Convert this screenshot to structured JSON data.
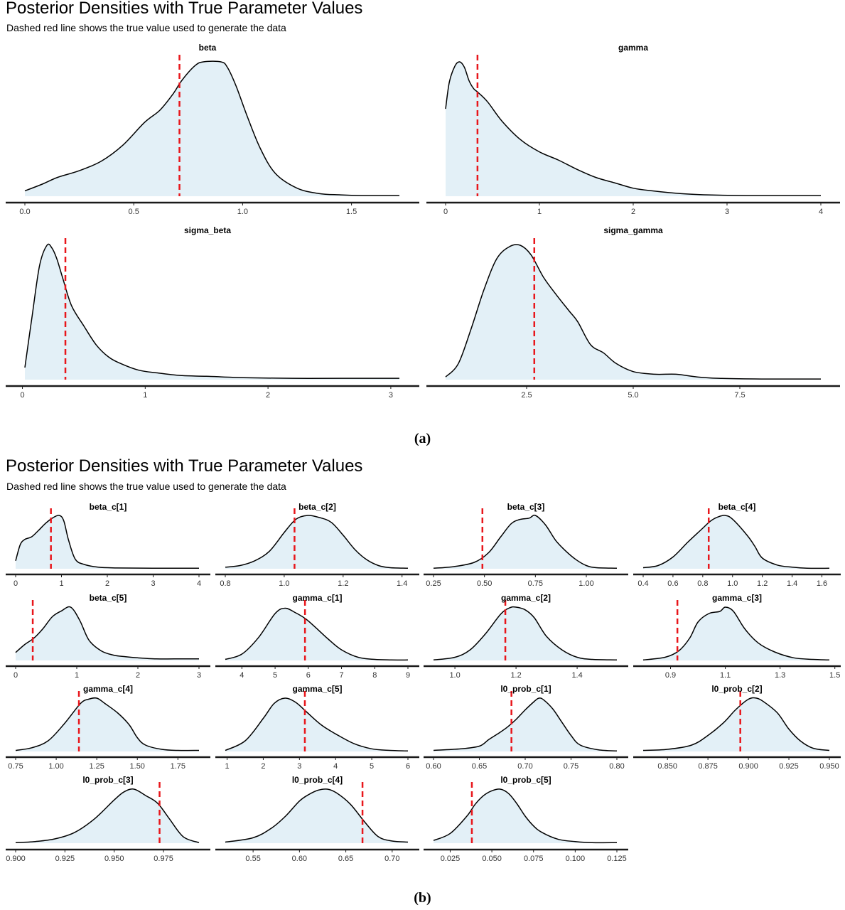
{
  "figures": [
    {
      "title": "Posterior Densities with True Parameter Values",
      "subtitle": "Dashed red line shows the true value used to generate the data",
      "caption": "(a)"
    },
    {
      "title": "Posterior Densities with True Parameter Values",
      "subtitle": "Dashed red line shows the true value used to generate the data",
      "caption": "(b)"
    }
  ],
  "colors": {
    "fill": "#e3f0f7",
    "line": "#000000",
    "true_value": "#e8161b",
    "axis": "#1a1a1a",
    "tick_text": "#333333"
  },
  "chart_data": [
    {
      "type": "area",
      "panel": "a",
      "title": "beta",
      "xlim": [
        0.0,
        1.72
      ],
      "xticks": [
        0.0,
        0.5,
        1.0,
        1.5
      ],
      "tick_labels": [
        "0.0",
        "0.5",
        "1.0",
        "1.5"
      ],
      "true_value": 0.71,
      "density": {
        "x": [
          0.0,
          0.08,
          0.15,
          0.25,
          0.35,
          0.45,
          0.55,
          0.62,
          0.68,
          0.72,
          0.78,
          0.82,
          0.9,
          0.93,
          0.97,
          1.02,
          1.08,
          1.15,
          1.25,
          1.35,
          1.45,
          1.55,
          1.72
        ],
        "y": [
          0.04,
          0.09,
          0.14,
          0.19,
          0.26,
          0.38,
          0.55,
          0.64,
          0.76,
          0.86,
          0.97,
          1.0,
          1.0,
          0.96,
          0.82,
          0.6,
          0.36,
          0.17,
          0.06,
          0.02,
          0.01,
          0.005,
          0.005
        ]
      }
    },
    {
      "type": "area",
      "panel": "a",
      "title": "gamma",
      "xlim": [
        0.0,
        4.0
      ],
      "xticks": [
        0,
        1,
        2,
        3,
        4
      ],
      "tick_labels": [
        "0",
        "1",
        "2",
        "3",
        "4"
      ],
      "true_value": 0.34,
      "density": {
        "x": [
          0.0,
          0.04,
          0.1,
          0.15,
          0.2,
          0.25,
          0.3,
          0.35,
          0.45,
          0.6,
          0.8,
          1.0,
          1.2,
          1.4,
          1.6,
          1.8,
          2.0,
          2.2,
          2.5,
          2.8,
          3.2,
          4.0
        ],
        "y": [
          0.65,
          0.85,
          0.97,
          1.0,
          0.96,
          0.86,
          0.8,
          0.77,
          0.7,
          0.56,
          0.42,
          0.33,
          0.27,
          0.2,
          0.14,
          0.1,
          0.06,
          0.04,
          0.02,
          0.01,
          0.005,
          0.005
        ]
      }
    },
    {
      "type": "area",
      "panel": "a",
      "title": "sigma_beta",
      "xlim": [
        0.02,
        3.07
      ],
      "xticks": [
        0,
        1,
        2,
        3
      ],
      "tick_labels": [
        "0",
        "1",
        "2",
        "3"
      ],
      "true_value": 0.35,
      "density": {
        "x": [
          0.02,
          0.08,
          0.14,
          0.2,
          0.24,
          0.28,
          0.33,
          0.4,
          0.5,
          0.6,
          0.7,
          0.8,
          0.95,
          1.1,
          1.3,
          1.5,
          1.8,
          2.2,
          2.6,
          3.07
        ],
        "y": [
          0.09,
          0.48,
          0.85,
          1.0,
          0.98,
          0.9,
          0.75,
          0.55,
          0.4,
          0.26,
          0.17,
          0.12,
          0.07,
          0.05,
          0.03,
          0.025,
          0.015,
          0.01,
          0.01,
          0.01
        ]
      }
    },
    {
      "type": "area",
      "panel": "a",
      "title": "sigma_gamma",
      "xlim": [
        0.6,
        9.4
      ],
      "xticks": [
        2.5,
        5.0,
        7.5
      ],
      "tick_labels": [
        "2.5",
        "5.0",
        "7.5"
      ],
      "true_value": 2.68,
      "density": {
        "x": [
          0.6,
          0.9,
          1.2,
          1.5,
          1.8,
          2.1,
          2.35,
          2.6,
          2.9,
          3.2,
          3.5,
          3.7,
          4.0,
          4.3,
          4.6,
          5.0,
          5.5,
          6.0,
          6.5,
          7.0,
          8.0,
          9.4
        ],
        "y": [
          0.02,
          0.12,
          0.38,
          0.67,
          0.9,
          0.99,
          1.0,
          0.93,
          0.76,
          0.63,
          0.51,
          0.43,
          0.26,
          0.2,
          0.12,
          0.06,
          0.04,
          0.04,
          0.02,
          0.01,
          0.005,
          0.005
        ]
      }
    },
    {
      "type": "area",
      "panel": "b",
      "title": "beta_c[1]",
      "xlim": [
        0.0,
        4.0
      ],
      "xticks": [
        0,
        1,
        2,
        3,
        4
      ],
      "tick_labels": [
        "0",
        "1",
        "2",
        "3",
        "4"
      ],
      "true_value": 0.77,
      "density": {
        "x": [
          0.0,
          0.1,
          0.2,
          0.35,
          0.5,
          0.65,
          0.8,
          0.95,
          1.05,
          1.15,
          1.3,
          1.5,
          1.8,
          2.2,
          3.0,
          4.0
        ],
        "y": [
          0.15,
          0.45,
          0.55,
          0.6,
          0.72,
          0.85,
          0.95,
          1.0,
          0.9,
          0.55,
          0.18,
          0.08,
          0.03,
          0.015,
          0.01,
          0.01
        ]
      }
    },
    {
      "type": "area",
      "panel": "b",
      "title": "beta_c[2]",
      "xlim": [
        0.8,
        1.42
      ],
      "xticks": [
        0.8,
        1.0,
        1.2,
        1.4
      ],
      "tick_labels": [
        "0.8",
        "1.0",
        "1.2",
        "1.4"
      ],
      "true_value": 1.035,
      "density": {
        "x": [
          0.8,
          0.85,
          0.9,
          0.95,
          1.0,
          1.04,
          1.08,
          1.12,
          1.16,
          1.2,
          1.24,
          1.28,
          1.32,
          1.36,
          1.42
        ],
        "y": [
          0.03,
          0.06,
          0.15,
          0.33,
          0.68,
          0.93,
          1.0,
          0.96,
          0.87,
          0.63,
          0.36,
          0.17,
          0.06,
          0.02,
          0.01
        ]
      }
    },
    {
      "type": "area",
      "panel": "b",
      "title": "beta_c[3]",
      "xlim": [
        0.25,
        1.15
      ],
      "xticks": [
        0.25,
        0.5,
        0.75,
        1.0
      ],
      "tick_labels": [
        "0.25",
        "0.50",
        "0.75",
        "1.00"
      ],
      "true_value": 0.49,
      "density": {
        "x": [
          0.25,
          0.35,
          0.45,
          0.52,
          0.58,
          0.63,
          0.67,
          0.72,
          0.75,
          0.8,
          0.85,
          0.9,
          0.95,
          1.0,
          1.05,
          1.15
        ],
        "y": [
          0.01,
          0.04,
          0.12,
          0.3,
          0.6,
          0.84,
          0.92,
          0.95,
          1.0,
          0.82,
          0.53,
          0.33,
          0.17,
          0.06,
          0.02,
          0.01
        ]
      }
    },
    {
      "type": "area",
      "panel": "b",
      "title": "beta_c[4]",
      "xlim": [
        0.4,
        1.65
      ],
      "xticks": [
        0.4,
        0.6,
        0.8,
        1.0,
        1.2,
        1.4,
        1.6
      ],
      "tick_labels": [
        "0.4",
        "0.6",
        "0.8",
        "1.0",
        "1.2",
        "1.4",
        "1.6"
      ],
      "true_value": 0.84,
      "density": {
        "x": [
          0.4,
          0.5,
          0.6,
          0.7,
          0.8,
          0.85,
          0.9,
          0.95,
          1.0,
          1.1,
          1.15,
          1.2,
          1.3,
          1.4,
          1.5,
          1.65
        ],
        "y": [
          0.02,
          0.06,
          0.22,
          0.5,
          0.76,
          0.89,
          0.97,
          1.0,
          0.93,
          0.62,
          0.42,
          0.2,
          0.07,
          0.03,
          0.01,
          0.01
        ]
      }
    },
    {
      "type": "area",
      "panel": "b",
      "title": "beta_c[5]",
      "xlim": [
        0.0,
        3.0
      ],
      "xticks": [
        0,
        1,
        2,
        3
      ],
      "tick_labels": [
        "0",
        "1",
        "2",
        "3"
      ],
      "true_value": 0.28,
      "density": {
        "x": [
          0.0,
          0.15,
          0.3,
          0.45,
          0.6,
          0.75,
          0.9,
          1.05,
          1.2,
          1.4,
          1.6,
          1.8,
          2.0,
          2.3,
          2.6,
          3.0
        ],
        "y": [
          0.15,
          0.3,
          0.42,
          0.6,
          0.82,
          0.93,
          1.0,
          0.75,
          0.38,
          0.18,
          0.1,
          0.07,
          0.05,
          0.03,
          0.03,
          0.03
        ]
      }
    },
    {
      "type": "area",
      "panel": "b",
      "title": "gamma_c[1]",
      "xlim": [
        3.5,
        9.0
      ],
      "xticks": [
        4,
        5,
        6,
        7,
        8,
        9
      ],
      "tick_labels": [
        "4",
        "5",
        "6",
        "7",
        "8",
        "9"
      ],
      "true_value": 5.9,
      "density": {
        "x": [
          3.5,
          4.0,
          4.5,
          5.0,
          5.3,
          5.6,
          5.9,
          6.2,
          6.6,
          7.0,
          7.5,
          8.0,
          8.5,
          9.0
        ],
        "y": [
          0.02,
          0.12,
          0.43,
          0.88,
          0.98,
          0.9,
          0.79,
          0.63,
          0.4,
          0.2,
          0.06,
          0.02,
          0.01,
          0.01
        ]
      }
    },
    {
      "type": "area",
      "panel": "b",
      "title": "gamma_c[2]",
      "xlim": [
        0.93,
        1.53
      ],
      "xticks": [
        1.0,
        1.2,
        1.4
      ],
      "tick_labels": [
        "1.0",
        "1.2",
        "1.4"
      ],
      "true_value": 1.165,
      "density": {
        "x": [
          0.93,
          1.0,
          1.05,
          1.1,
          1.15,
          1.18,
          1.2,
          1.23,
          1.26,
          1.3,
          1.35,
          1.4,
          1.45,
          1.53
        ],
        "y": [
          0.01,
          0.06,
          0.2,
          0.5,
          0.87,
          0.99,
          1.0,
          0.95,
          0.8,
          0.45,
          0.2,
          0.06,
          0.02,
          0.01
        ]
      }
    },
    {
      "type": "area",
      "panel": "b",
      "title": "gamma_c[3]",
      "xlim": [
        0.8,
        1.48
      ],
      "xticks": [
        0.9,
        1.1,
        1.3,
        1.5
      ],
      "tick_labels": [
        "0.9",
        "1.1",
        "1.3",
        "1.5"
      ],
      "true_value": 0.925,
      "density": {
        "x": [
          0.8,
          0.88,
          0.93,
          0.97,
          1.0,
          1.04,
          1.08,
          1.1,
          1.13,
          1.17,
          1.22,
          1.28,
          1.35,
          1.42,
          1.48
        ],
        "y": [
          0.01,
          0.06,
          0.18,
          0.42,
          0.72,
          0.88,
          0.92,
          1.0,
          0.92,
          0.6,
          0.33,
          0.16,
          0.05,
          0.02,
          0.01
        ]
      }
    },
    {
      "type": "area",
      "panel": "b",
      "title": "gamma_c[4]",
      "xlim": [
        0.75,
        1.88
      ],
      "xticks": [
        0.75,
        1.0,
        1.25,
        1.5,
        1.75
      ],
      "tick_labels": [
        "0.75",
        "1.00",
        "1.25",
        "1.50",
        "1.75"
      ],
      "true_value": 1.14,
      "density": {
        "x": [
          0.75,
          0.85,
          0.95,
          1.05,
          1.15,
          1.2,
          1.25,
          1.3,
          1.38,
          1.45,
          1.5,
          1.55,
          1.65,
          1.75,
          1.88
        ],
        "y": [
          0.02,
          0.07,
          0.2,
          0.52,
          0.9,
          0.98,
          1.0,
          0.9,
          0.72,
          0.5,
          0.26,
          0.12,
          0.04,
          0.02,
          0.02
        ]
      }
    },
    {
      "type": "area",
      "panel": "b",
      "title": "gamma_c[5]",
      "xlim": [
        0.95,
        6.0
      ],
      "xticks": [
        1,
        2,
        3,
        4,
        5,
        6
      ],
      "tick_labels": [
        "1",
        "2",
        "3",
        "4",
        "5",
        "6"
      ],
      "true_value": 3.15,
      "density": {
        "x": [
          0.95,
          1.5,
          2.0,
          2.3,
          2.6,
          2.9,
          3.2,
          3.6,
          4.0,
          4.5,
          5.0,
          5.5,
          6.0
        ],
        "y": [
          0.02,
          0.2,
          0.62,
          0.9,
          1.0,
          0.92,
          0.74,
          0.5,
          0.33,
          0.15,
          0.05,
          0.02,
          0.01
        ]
      }
    },
    {
      "type": "area",
      "panel": "b",
      "title": "l0_prob_c[1]",
      "xlim": [
        0.6,
        0.8
      ],
      "xticks": [
        0.6,
        0.65,
        0.7,
        0.75,
        0.8
      ],
      "tick_labels": [
        "0.60",
        "0.65",
        "0.70",
        "0.75",
        "0.80"
      ],
      "true_value": 0.685,
      "density": {
        "x": [
          0.6,
          0.63,
          0.65,
          0.66,
          0.67,
          0.68,
          0.69,
          0.7,
          0.71,
          0.715,
          0.72,
          0.73,
          0.74,
          0.75,
          0.76,
          0.78,
          0.8
        ],
        "y": [
          0.02,
          0.05,
          0.1,
          0.22,
          0.33,
          0.45,
          0.6,
          0.78,
          0.94,
          1.0,
          0.97,
          0.8,
          0.55,
          0.3,
          0.12,
          0.03,
          0.01
        ]
      }
    },
    {
      "type": "area",
      "panel": "b",
      "title": "l0_prob_c[2]",
      "xlim": [
        0.835,
        0.95
      ],
      "xticks": [
        0.85,
        0.875,
        0.9,
        0.925,
        0.95
      ],
      "tick_labels": [
        "0.850",
        "0.875",
        "0.900",
        "0.925",
        "0.950"
      ],
      "true_value": 0.895,
      "density": {
        "x": [
          0.835,
          0.85,
          0.865,
          0.875,
          0.885,
          0.892,
          0.9,
          0.905,
          0.91,
          0.918,
          0.925,
          0.932,
          0.94,
          0.95
        ],
        "y": [
          0.02,
          0.04,
          0.12,
          0.3,
          0.55,
          0.78,
          0.98,
          1.0,
          0.92,
          0.72,
          0.42,
          0.2,
          0.06,
          0.02
        ]
      }
    },
    {
      "type": "area",
      "panel": "b",
      "title": "l0_prob_c[3]",
      "xlim": [
        0.9,
        0.993
      ],
      "xticks": [
        0.9,
        0.925,
        0.95,
        0.975
      ],
      "tick_labels": [
        "0.900",
        "0.925",
        "0.950",
        "0.975"
      ],
      "true_value": 0.973,
      "density": {
        "x": [
          0.9,
          0.91,
          0.92,
          0.93,
          0.94,
          0.95,
          0.955,
          0.96,
          0.966,
          0.972,
          0.978,
          0.985,
          0.993
        ],
        "y": [
          0.01,
          0.03,
          0.08,
          0.2,
          0.45,
          0.8,
          0.95,
          1.0,
          0.88,
          0.74,
          0.45,
          0.12,
          0.01
        ]
      }
    },
    {
      "type": "area",
      "panel": "b",
      "title": "l0_prob_c[4]",
      "xlim": [
        0.52,
        0.717
      ],
      "xticks": [
        0.55,
        0.6,
        0.65,
        0.7
      ],
      "tick_labels": [
        "0.55",
        "0.60",
        "0.65",
        "0.70"
      ],
      "true_value": 0.668,
      "density": {
        "x": [
          0.52,
          0.55,
          0.57,
          0.585,
          0.6,
          0.61,
          0.62,
          0.63,
          0.64,
          0.655,
          0.67,
          0.685,
          0.7,
          0.717
        ],
        "y": [
          0.02,
          0.1,
          0.28,
          0.5,
          0.78,
          0.9,
          0.98,
          1.0,
          0.93,
          0.72,
          0.4,
          0.12,
          0.04,
          0.02
        ]
      }
    },
    {
      "type": "area",
      "panel": "b",
      "title": "l0_prob_c[5]",
      "xlim": [
        0.015,
        0.125
      ],
      "xticks": [
        0.025,
        0.05,
        0.075,
        0.1,
        0.125
      ],
      "tick_labels": [
        "0.025",
        "0.050",
        "0.075",
        "0.100",
        "0.125"
      ],
      "true_value": 0.038,
      "density": {
        "x": [
          0.015,
          0.025,
          0.035,
          0.04,
          0.045,
          0.05,
          0.055,
          0.06,
          0.065,
          0.07,
          0.075,
          0.08,
          0.09,
          0.1,
          0.11,
          0.125
        ],
        "y": [
          0.05,
          0.18,
          0.5,
          0.72,
          0.88,
          0.97,
          1.0,
          0.92,
          0.73,
          0.5,
          0.32,
          0.2,
          0.07,
          0.03,
          0.01,
          0.01
        ]
      }
    }
  ]
}
